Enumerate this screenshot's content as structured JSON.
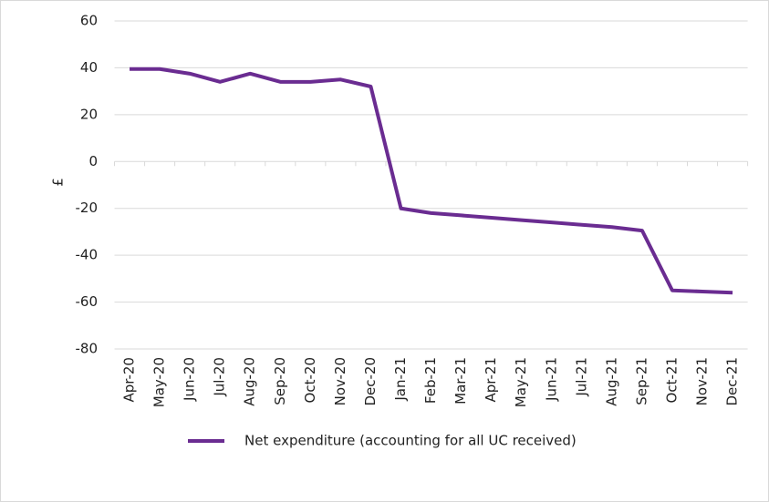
{
  "chart_data": {
    "type": "line",
    "y_label": "£",
    "categories": [
      "Apr-20",
      "May-20",
      "Jun-20",
      "Jul-20",
      "Aug-20",
      "Sep-20",
      "Oct-20",
      "Nov-20",
      "Dec-20",
      "Jan-21",
      "Feb-21",
      "Mar-21",
      "Apr-21",
      "May-21",
      "Jun-21",
      "Jul-21",
      "Aug-21",
      "Sep-21",
      "Oct-21",
      "Nov-21",
      "Dec-21"
    ],
    "series": [
      {
        "name": "Net expenditure (accounting for all UC received)",
        "color": "#6a2c91",
        "values": [
          39.5,
          39.5,
          37.5,
          34,
          37.5,
          34,
          34,
          35,
          32,
          -20,
          -22,
          -23,
          -24,
          -25,
          -26,
          -27,
          -28,
          -29.5,
          -55,
          -55.5,
          -56
        ]
      }
    ],
    "ylim": [
      -80,
      60
    ],
    "yticks": [
      -80,
      -60,
      -40,
      -20,
      0,
      20,
      40,
      60
    ],
    "grid": true
  }
}
